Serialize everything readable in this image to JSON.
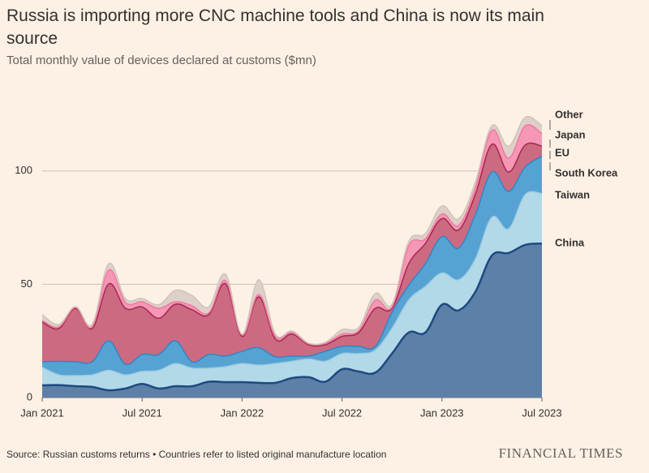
{
  "chart_data": {
    "type": "stacked_area",
    "title": "Russia is importing more CNC machine tools and China is now its main source",
    "subtitle": "Total monthly value of devices declared at customs ($mn)",
    "source": "Source: Russian customs returns • Countries refer to listed original manufacture location",
    "brand": "FINANCIAL TIMES",
    "categories": [
      "Jan 2021",
      null,
      null,
      null,
      null,
      null,
      "Jul 2021",
      null,
      null,
      null,
      null,
      null,
      "Jan 2022",
      null,
      null,
      null,
      null,
      null,
      "Jul 2022",
      null,
      null,
      null,
      null,
      null,
      "Jan 2023",
      null,
      null,
      null,
      null,
      null,
      "Jul 2023"
    ],
    "ylim": [
      0,
      125
    ],
    "yticks": [
      0,
      50,
      100
    ],
    "grid": true,
    "series": [
      {
        "name": "China",
        "color": "#5d80a8",
        "line": "#1d4a80",
        "values": [
          5.4,
          5.5,
          5,
          4.7,
          3.2,
          4,
          6,
          4,
          5,
          5,
          7,
          6.8,
          6.8,
          6.5,
          6.5,
          8.6,
          9,
          7,
          12.5,
          11.5,
          11,
          19.4,
          28.7,
          28.7,
          41,
          38.5,
          46.6,
          62.7,
          63.8,
          67.4,
          68
        ]
      },
      {
        "name": "Taiwan",
        "color": "#b3d9e8",
        "line": "#9ccbe0",
        "values": [
          7.9,
          4.5,
          4.7,
          5.3,
          8.8,
          6,
          5.5,
          8,
          10,
          8,
          6,
          6.8,
          8.2,
          7.8,
          8.5,
          7.4,
          8,
          9,
          6.9,
          7.9,
          10,
          11.1,
          14.3,
          20.3,
          14,
          13.5,
          14.4,
          16.9,
          10.7,
          22.2,
          22
        ]
      },
      {
        "name": "South Korea",
        "color": "#56a3d3",
        "line": "#2f86c4",
        "values": [
          2.5,
          6,
          6.1,
          5.8,
          13,
          4.7,
          7.5,
          7,
          10,
          2.8,
          6,
          4.7,
          5.4,
          7.7,
          3,
          2.3,
          1.3,
          4.4,
          3.2,
          3.2,
          1.6,
          7.1,
          6.5,
          10,
          16,
          14,
          19.6,
          20,
          16.5,
          12.2,
          16.5
        ]
      },
      {
        "name": "EU",
        "color": "#cc6a82",
        "line": "#a3284f",
        "values": [
          17.5,
          14.5,
          23.6,
          14.7,
          25.2,
          24.7,
          21,
          16,
          16.2,
          22.9,
          17.6,
          31.9,
          6.6,
          22.4,
          7.8,
          9.7,
          5,
          2.9,
          4.4,
          6.1,
          16.8,
          1.8,
          9.5,
          9,
          8,
          8,
          9,
          12.2,
          8.6,
          9.7,
          4.5
        ]
      },
      {
        "name": "Japan",
        "color": "#f597b5",
        "line": "#ee7aa0",
        "values": [
          0.7,
          0.7,
          0.4,
          0.7,
          6.1,
          2.6,
          2.3,
          4.4,
          1.1,
          1.8,
          0.7,
          1.4,
          0.6,
          1.1,
          1.1,
          0.7,
          0.4,
          0.7,
          1,
          0.8,
          3.6,
          0.6,
          8,
          2,
          2,
          2,
          2.9,
          6.2,
          6.1,
          8.5,
          5.5
        ]
      },
      {
        "name": "Other",
        "color": "#ded0c8",
        "line": "#d2c3ba",
        "values": [
          2.6,
          1.1,
          0.3,
          1.1,
          2.8,
          1.7,
          1.4,
          1.6,
          5,
          4.5,
          2.8,
          2.9,
          0.4,
          6.5,
          1.1,
          0.7,
          0.3,
          0.4,
          2,
          1.5,
          3,
          1.2,
          1.8,
          2.4,
          3.6,
          2.9,
          2.5,
          2,
          5.3,
          3.7,
          3.5
        ]
      }
    ]
  }
}
